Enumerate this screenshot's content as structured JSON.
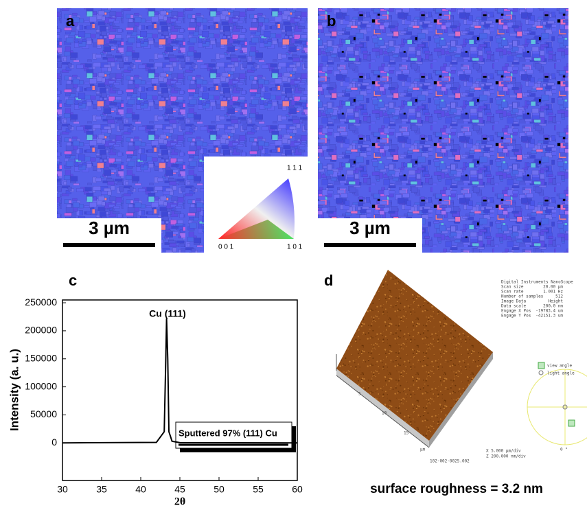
{
  "panels": {
    "a": {
      "label": "a",
      "scale_bar": "3 µm",
      "key_labels": [
        "0 0 1",
        "1 0 1",
        "1 1 1"
      ]
    },
    "b": {
      "label": "b",
      "scale_bar": "3 µm"
    },
    "c": {
      "label": "c"
    },
    "d": {
      "label": "d",
      "info": [
        "Digital Instruments NanoScope",
        "Scan size",
        "20.00 µm",
        "Scan rate",
        "1.001 Hz",
        "Number of samples",
        "512",
        "Image Data",
        "Height",
        "Data scale",
        "200.0 nm",
        "Engage X Pos",
        "-19783.4 um",
        "Engage Y Pos",
        "-42151.3 um"
      ],
      "axis_ticks": [
        "5",
        "10",
        "15"
      ],
      "axis_unit": "µm",
      "file": "102-002-0025.002",
      "scale_x": "X  5.000 µm/div",
      "scale_z": "Z  200.000 nm/div",
      "view_angle": "view angle",
      "light_angle": "light angle",
      "angle": "0 °",
      "caption": "surface roughness = 3.2 nm"
    }
  },
  "chart_data": {
    "type": "line",
    "xlabel": "2θ",
    "ylabel": "Intensity (a. u.)",
    "annotation": "Cu (111)",
    "x": [
      30,
      42,
      43.0,
      43.2,
      43.3,
      43.45,
      43.6,
      44,
      45,
      60
    ],
    "series": [
      {
        "name": "Sputtered 97% (111) Cu",
        "color": "#000000",
        "values": [
          0,
          1000,
          20000,
          150000,
          222000,
          150000,
          20000,
          3000,
          500,
          0
        ]
      }
    ],
    "xlim": [
      30,
      60
    ],
    "xticks": [
      30,
      35,
      40,
      45,
      50,
      55,
      60
    ],
    "ylim": [
      -67000,
      255000
    ],
    "yticks": [
      0,
      50000,
      100000,
      150000,
      200000,
      250000
    ]
  }
}
